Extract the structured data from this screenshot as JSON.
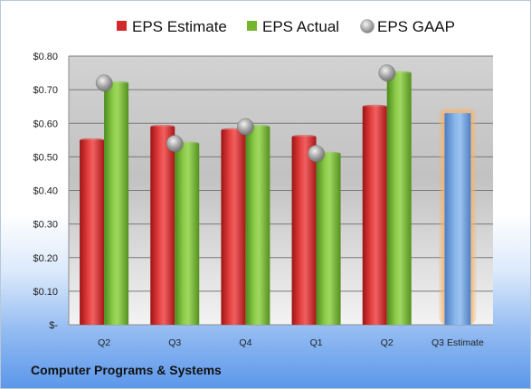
{
  "chart_data": {
    "type": "bar",
    "categories": [
      "Q2",
      "Q3",
      "Q4",
      "Q1",
      "Q2",
      "Q3 Estimate"
    ],
    "series": [
      {
        "name": "EPS Estimate",
        "values": [
          0.55,
          0.59,
          0.58,
          0.56,
          0.65,
          null
        ]
      },
      {
        "name": "EPS Actual",
        "values": [
          0.72,
          0.54,
          0.59,
          0.51,
          0.75,
          null
        ]
      },
      {
        "name": "EPS GAAP",
        "values": [
          0.72,
          0.54,
          0.59,
          0.51,
          0.75,
          null
        ]
      }
    ],
    "forecast": {
      "category": "Q3 Estimate",
      "value": 0.63
    },
    "y_ticks": [
      "$-",
      "$0.10",
      "$0.20",
      "$0.30",
      "$0.40",
      "$0.50",
      "$0.60",
      "$0.70",
      "$0.80"
    ],
    "ylim": [
      0,
      0.8
    ],
    "grid": true,
    "legend_position": "top",
    "colors": {
      "estimate": "#d22a2a",
      "actual": "#74b52e",
      "gaap": "#a6a6a6",
      "forecast": "#6f9fdb",
      "forecast_glow": "#f5b56a"
    }
  },
  "footer": {
    "label": "Computer Programs & Systems"
  }
}
